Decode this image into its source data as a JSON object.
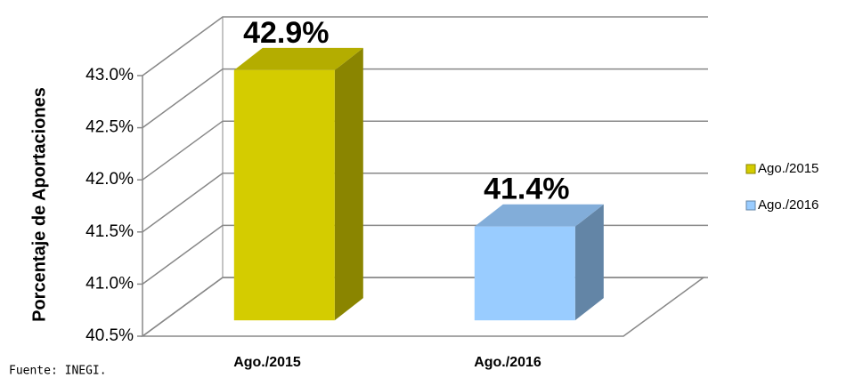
{
  "chart_data": {
    "type": "bar3d",
    "y_label": "Porcentaje de Aportaciones",
    "categories": [
      "Ago./2015",
      "Ago./2016"
    ],
    "values": [
      42.9,
      41.4
    ],
    "value_labels": [
      "42.9%",
      "41.4%"
    ],
    "colors": [
      "#d4cc00",
      "#99ccff"
    ],
    "ylim": [
      40.5,
      43.0
    ],
    "yticks": [
      {
        "value": 40.5,
        "label": "40.5%"
      },
      {
        "value": 41.0,
        "label": "41.0%"
      },
      {
        "value": 41.5,
        "label": "41.5%"
      },
      {
        "value": 42.0,
        "label": "42.0%"
      },
      {
        "value": 42.5,
        "label": "42.5%"
      },
      {
        "value": 43.0,
        "label": "43.0%"
      }
    ],
    "grid": true,
    "legend": "right",
    "source": "Fuente: INEGI."
  }
}
